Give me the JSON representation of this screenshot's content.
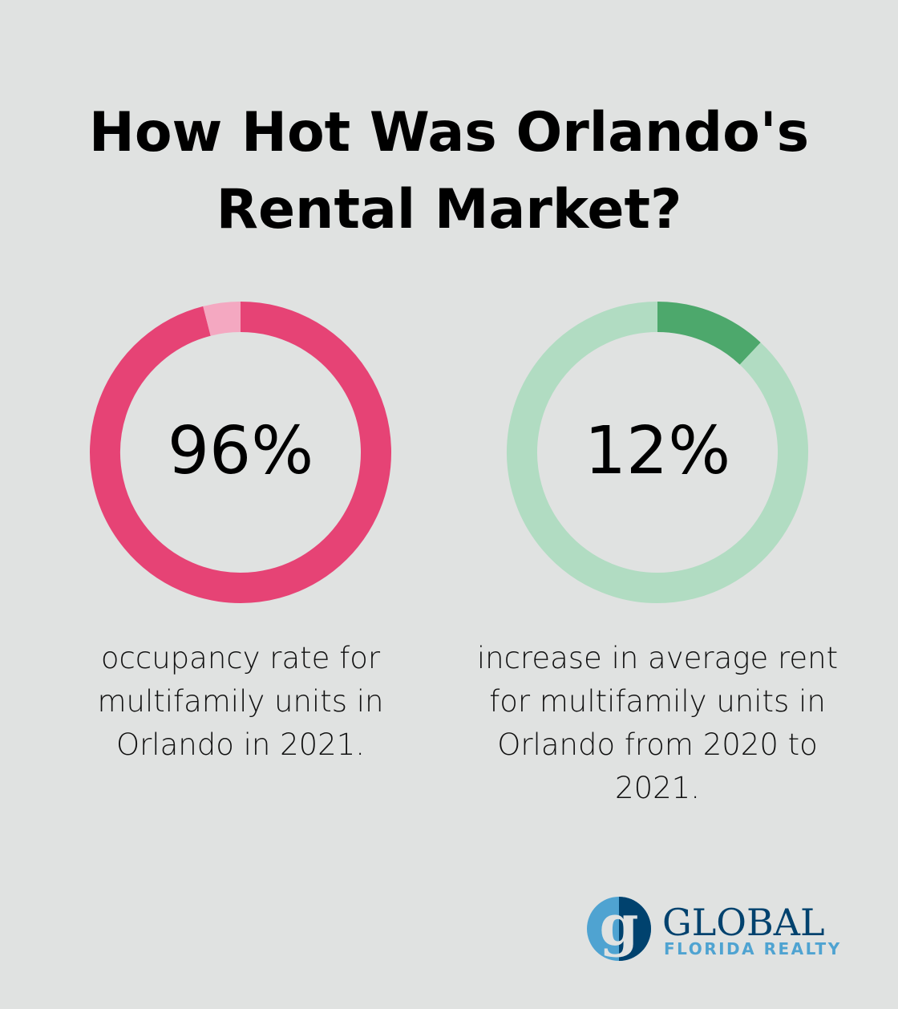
{
  "title": "How Hot Was Orlando's Rental Market?",
  "chart_data": [
    {
      "type": "pie",
      "subtype": "donut",
      "value_label": "96%",
      "values": [
        96,
        4
      ],
      "caption": "occupancy rate for multifamily units in Orlando in 2021.",
      "colors": [
        "#E64375",
        "#F4A8C1"
      ]
    },
    {
      "type": "pie",
      "subtype": "donut",
      "value_label": "12%",
      "values": [
        12,
        88
      ],
      "caption": "increase in average rent for multifamily units in Orlando from 2020 to 2021.",
      "colors": [
        "#4DA86C",
        "#B1DCC2"
      ]
    }
  ],
  "logo": {
    "line1": "GLOBAL",
    "line2": "FLORIDA REALTY",
    "colors": {
      "dark": "#00426E",
      "light": "#4FA3D1"
    }
  }
}
